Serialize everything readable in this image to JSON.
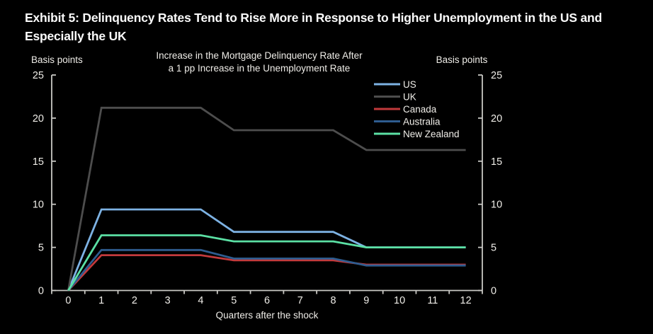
{
  "exhibit": {
    "title_line1": "Exhibit 5: Delinquency Rates Tend to Rise More in Response to Higher Unemployment in the US and",
    "title_line2": "Especially the UK"
  },
  "chart_data": {
    "type": "line",
    "title_line1": "Increase in the Mortgage Delinquency Rate After",
    "title_line2": "a 1 pp Increase in the Unemployment Rate",
    "left_axis_label": "Basis points",
    "right_axis_label": "Basis points",
    "xlabel": "Quarters after the shock",
    "categories": [
      0,
      1,
      2,
      3,
      4,
      5,
      6,
      7,
      8,
      9,
      10,
      11,
      12
    ],
    "x_tick_labels": [
      "0",
      "1",
      "2",
      "3",
      "4",
      "5",
      "6",
      "7",
      "8",
      "9",
      "10",
      "11",
      "12"
    ],
    "ylim": [
      0,
      25
    ],
    "y_tick_step": 5,
    "y_tick_labels": [
      "0",
      "5",
      "10",
      "15",
      "20",
      "25"
    ],
    "grid": false,
    "legend_position": "top-right-inside",
    "background_color": "#000000",
    "axis_color": "#c9c8c4",
    "text_color": "#efede8",
    "series": [
      {
        "name": "US",
        "color": "#7db2e3",
        "values": [
          0,
          9.4,
          9.4,
          9.4,
          9.4,
          6.8,
          6.8,
          6.8,
          6.8,
          5.0,
          5.0,
          5.0,
          5.0
        ]
      },
      {
        "name": "UK",
        "color": "#4d4d4d",
        "values": [
          0,
          21.2,
          21.2,
          21.2,
          21.2,
          18.6,
          18.6,
          18.6,
          18.6,
          16.3,
          16.3,
          16.3,
          16.3
        ]
      },
      {
        "name": "Canada",
        "color": "#c23a3c",
        "values": [
          0,
          4.1,
          4.1,
          4.1,
          4.1,
          3.5,
          3.5,
          3.5,
          3.5,
          3.0,
          3.0,
          3.0,
          3.0
        ]
      },
      {
        "name": "Australia",
        "color": "#2e5c8f",
        "values": [
          0,
          4.7,
          4.7,
          4.7,
          4.7,
          3.7,
          3.7,
          3.7,
          3.7,
          2.9,
          2.9,
          2.9,
          2.9
        ]
      },
      {
        "name": "New Zealand",
        "color": "#5be0a4",
        "values": [
          0,
          6.4,
          6.4,
          6.4,
          6.4,
          5.7,
          5.7,
          5.7,
          5.7,
          5.0,
          5.0,
          5.0,
          5.0
        ]
      }
    ]
  }
}
